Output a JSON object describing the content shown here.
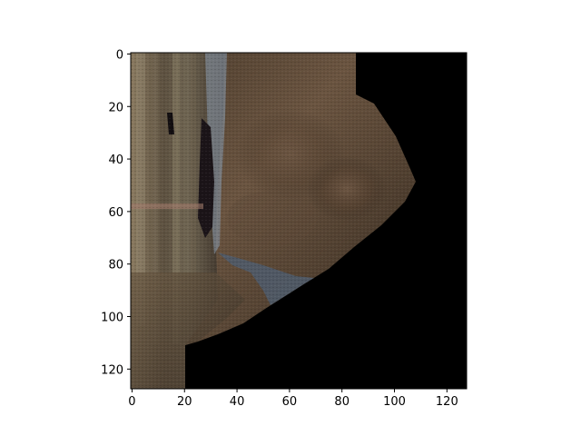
{
  "image": {
    "description_tags": [
      "texture",
      "fabric",
      "dark-background"
    ],
    "axis_color": "#000000",
    "background_color": "#ffffff",
    "masked_color": "#000000"
  },
  "axes": {
    "x_ticks": [
      "0",
      "20",
      "40",
      "60",
      "80",
      "100",
      "120"
    ],
    "y_ticks": [
      "0",
      "20",
      "40",
      "60",
      "80",
      "100",
      "120"
    ],
    "x_range": [
      -0.5,
      127.5
    ],
    "y_range": [
      -0.5,
      127.5
    ],
    "y_inverted": true
  }
}
